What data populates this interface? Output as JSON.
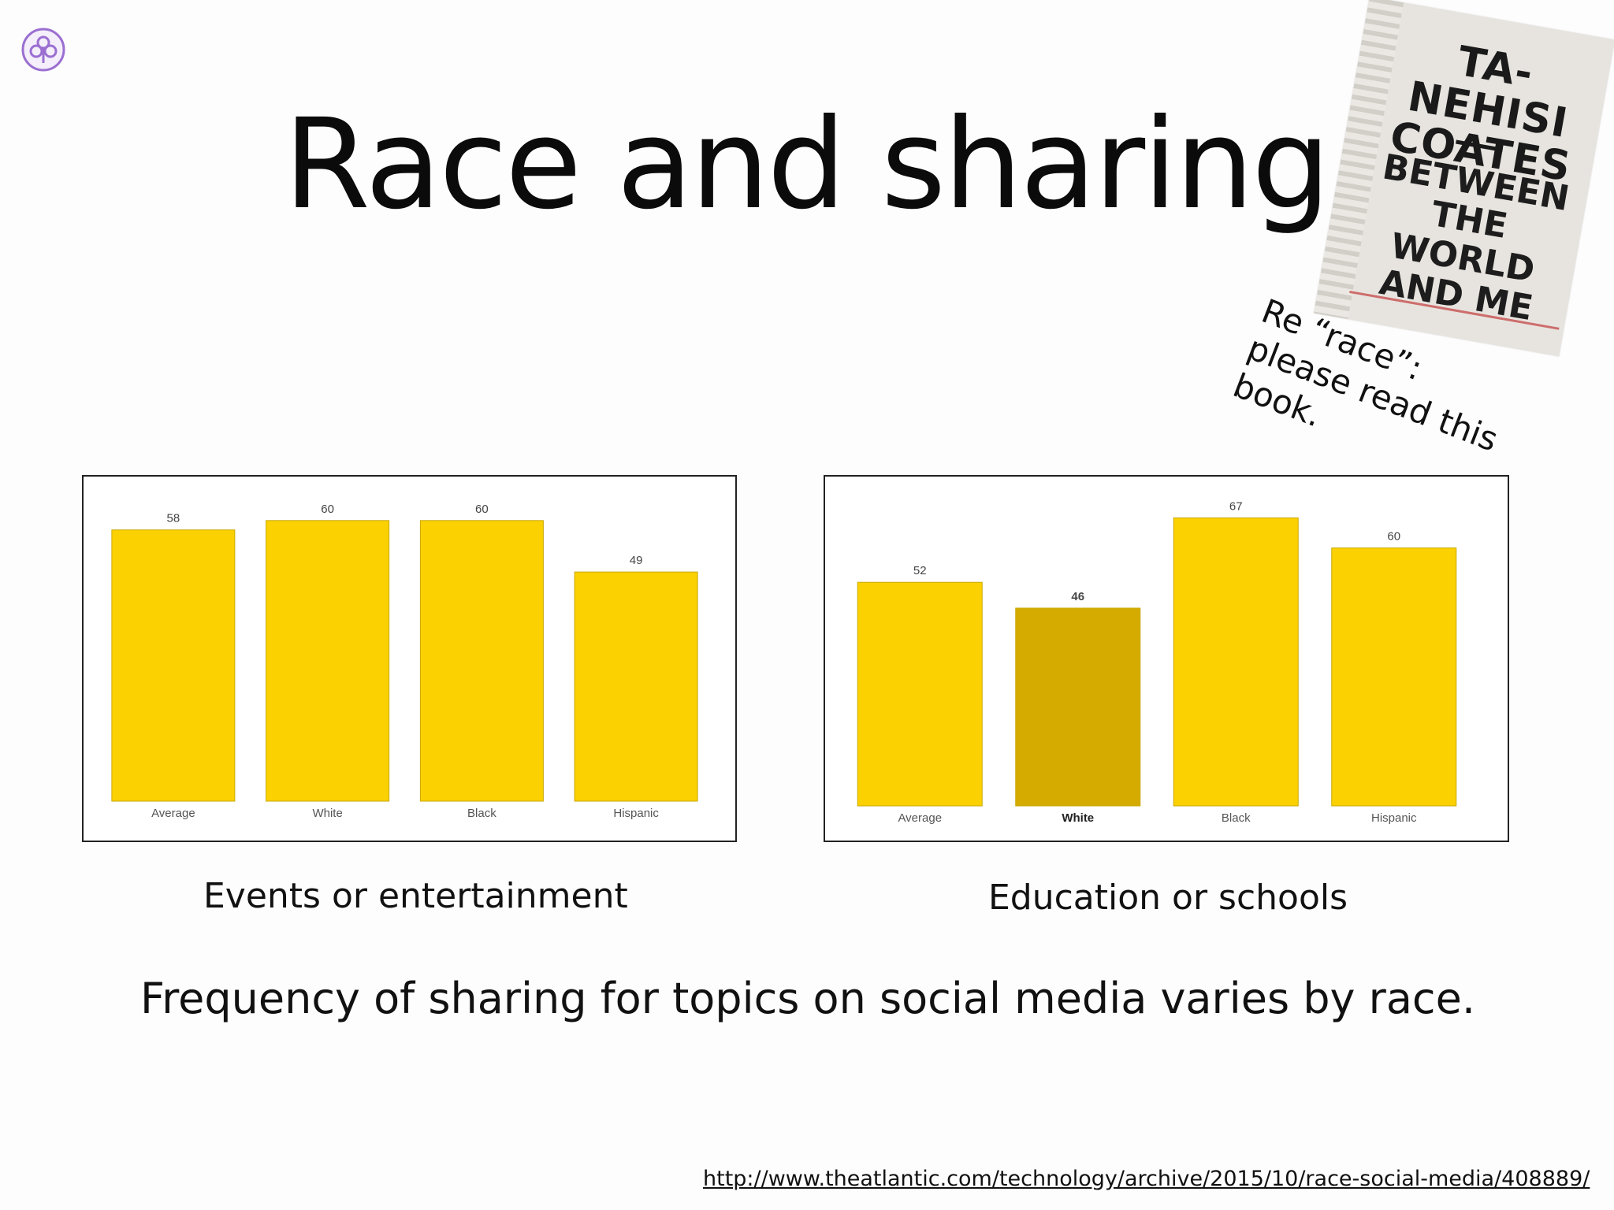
{
  "slide": {
    "title": "Race and sharing",
    "book_note": "Re “race”: please read this book.",
    "subtitle": "Frequency of sharing for topics on social media varies by race.",
    "source_url": "http://www.theatlantic.com/technology/archive/2015/10/race-social-media/408889/",
    "logo_icon": "purple-fleur-logo-icon"
  },
  "book": {
    "author": "TA-NEHISI COATES",
    "title": "BETWEEN THE WORLD AND ME",
    "icon": "book-cover-icon"
  },
  "colors": {
    "bar": "#fcd101",
    "bar_highlight": "#d5ab00",
    "logo": "#9b6fd1"
  },
  "chart_data": [
    {
      "type": "bar",
      "caption": "Events or entertainment",
      "categories": [
        "Average",
        "White",
        "Black",
        "Hispanic"
      ],
      "values": [
        58,
        60,
        60,
        49
      ],
      "highlight_index": -1,
      "ylim": [
        0,
        63
      ]
    },
    {
      "type": "bar",
      "caption": "Education or schools",
      "categories": [
        "Average",
        "White",
        "Black",
        "Hispanic"
      ],
      "values": [
        52,
        46,
        67,
        60
      ],
      "highlight_index": 1,
      "ylim": [
        0,
        70
      ]
    }
  ]
}
